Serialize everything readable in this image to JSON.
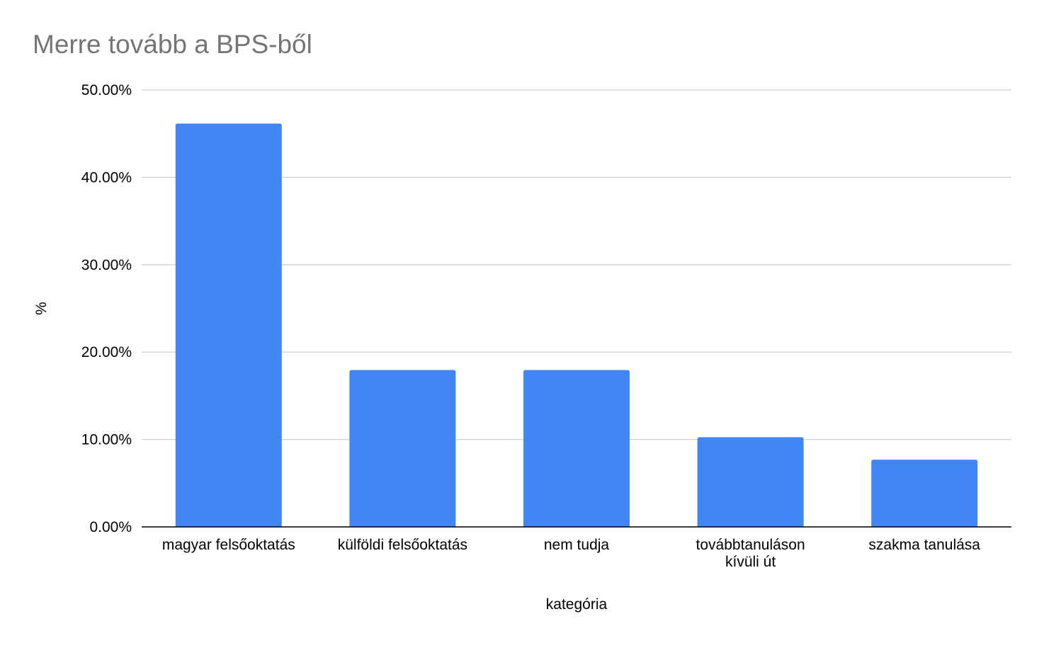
{
  "chart_data": {
    "type": "bar",
    "title": "Merre tovább a BPS-ből",
    "xlabel": "kategória",
    "ylabel": "%",
    "categories": [
      "magyar felsőoktatás",
      "külföldi felsőoktatás",
      "nem tudja",
      "továbbtanuláson kívüli út",
      "szakma tanulása"
    ],
    "category_label_lines": [
      [
        "magyar felsőoktatás"
      ],
      [
        "külföldi felsőoktatás"
      ],
      [
        "nem tudja"
      ],
      [
        "továbbtanuláson",
        "kívüli út"
      ],
      [
        "szakma tanulása"
      ]
    ],
    "values": [
      46.15,
      17.95,
      17.95,
      10.26,
      7.69
    ],
    "ylim": [
      0,
      50
    ],
    "yticks": [
      0,
      10,
      20,
      30,
      40,
      50
    ],
    "ytick_labels": [
      "0.00%",
      "10.00%",
      "20.00%",
      "30.00%",
      "40.00%",
      "50.00%"
    ],
    "grid": true,
    "legend": "none",
    "colors": {
      "bar": "#4285f4",
      "grid": "#d0d0d0",
      "axis": "#000000",
      "title": "#757575",
      "text": "#000000"
    }
  }
}
